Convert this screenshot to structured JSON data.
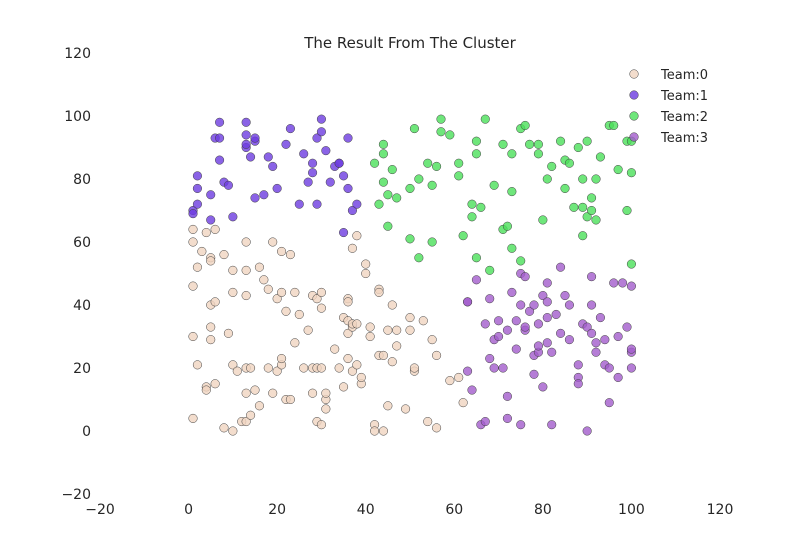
{
  "chart_data": {
    "type": "scatter",
    "title": "The Result From The Cluster",
    "xlabel": "",
    "ylabel": "",
    "xlim": [
      -20,
      120
    ],
    "ylim": [
      -20,
      120
    ],
    "x_ticks": [
      -20,
      0,
      20,
      40,
      60,
      80,
      100,
      120
    ],
    "y_ticks": [
      -20,
      0,
      20,
      40,
      60,
      80,
      100,
      120
    ],
    "x_tick_labels": [
      "−20",
      "0",
      "20",
      "40",
      "60",
      "80",
      "100",
      "120"
    ],
    "y_tick_labels": [
      "−20",
      "0",
      "20",
      "40",
      "60",
      "80",
      "100",
      "120"
    ],
    "grid": false,
    "legend_position": "top-right",
    "series": [
      {
        "name": "Team:0",
        "color": "#f0d5c0",
        "points": [
          [
            1,
            64
          ],
          [
            1,
            60
          ],
          [
            1,
            46
          ],
          [
            1,
            30
          ],
          [
            1,
            4
          ],
          [
            2,
            52
          ],
          [
            2,
            21
          ],
          [
            3,
            57
          ],
          [
            4,
            63
          ],
          [
            4,
            14
          ],
          [
            4,
            13
          ],
          [
            5,
            55
          ],
          [
            5,
            54
          ],
          [
            5,
            40
          ],
          [
            5,
            33
          ],
          [
            5,
            29
          ],
          [
            6,
            64
          ],
          [
            6,
            41
          ],
          [
            6,
            15
          ],
          [
            8,
            1
          ],
          [
            8,
            56
          ],
          [
            9,
            31
          ],
          [
            10,
            51
          ],
          [
            10,
            44
          ],
          [
            10,
            21
          ],
          [
            10,
            0
          ],
          [
            11,
            19
          ],
          [
            12,
            3
          ],
          [
            13,
            60
          ],
          [
            13,
            51
          ],
          [
            13,
            43
          ],
          [
            13,
            20
          ],
          [
            13,
            12
          ],
          [
            13,
            3
          ],
          [
            14,
            20
          ],
          [
            14,
            5
          ],
          [
            15,
            13
          ],
          [
            16,
            52
          ],
          [
            16,
            8
          ],
          [
            17,
            48
          ],
          [
            18,
            20
          ],
          [
            18,
            45
          ],
          [
            19,
            12
          ],
          [
            19,
            60
          ],
          [
            20,
            42
          ],
          [
            20,
            19
          ],
          [
            21,
            44
          ],
          [
            21,
            57
          ],
          [
            21,
            21
          ],
          [
            21,
            23
          ],
          [
            22,
            38
          ],
          [
            22,
            10
          ],
          [
            23,
            10
          ],
          [
            23,
            56
          ],
          [
            24,
            44
          ],
          [
            24,
            28
          ],
          [
            25,
            37
          ],
          [
            26,
            20
          ],
          [
            27,
            32
          ],
          [
            28,
            20
          ],
          [
            28,
            12
          ],
          [
            28,
            43
          ],
          [
            29,
            3
          ],
          [
            29,
            20
          ],
          [
            29,
            42
          ],
          [
            30,
            44
          ],
          [
            30,
            39
          ],
          [
            30,
            20
          ],
          [
            30,
            2
          ],
          [
            31,
            10
          ],
          [
            31,
            12
          ],
          [
            31,
            7
          ],
          [
            33,
            26
          ],
          [
            34,
            20
          ],
          [
            35,
            36
          ],
          [
            35,
            14
          ],
          [
            36,
            42
          ],
          [
            36,
            41
          ],
          [
            36,
            35
          ],
          [
            36,
            23
          ],
          [
            36,
            31
          ],
          [
            37,
            58
          ],
          [
            37,
            33
          ],
          [
            37,
            34
          ],
          [
            37,
            19
          ],
          [
            38,
            62
          ],
          [
            38,
            34
          ],
          [
            38,
            21
          ],
          [
            39,
            15
          ],
          [
            39,
            17
          ],
          [
            40,
            53
          ],
          [
            40,
            50
          ],
          [
            41,
            30
          ],
          [
            41,
            33
          ],
          [
            42,
            2
          ],
          [
            42,
            0
          ],
          [
            43,
            24
          ],
          [
            43,
            45
          ],
          [
            43,
            44
          ],
          [
            44,
            0
          ],
          [
            44,
            24
          ],
          [
            45,
            8
          ],
          [
            45,
            32
          ],
          [
            46,
            40
          ],
          [
            46,
            22
          ],
          [
            47,
            32
          ],
          [
            47,
            27
          ],
          [
            49,
            7
          ],
          [
            50,
            36
          ],
          [
            50,
            32
          ],
          [
            51,
            19
          ],
          [
            51,
            20
          ],
          [
            53,
            35
          ],
          [
            54,
            3
          ],
          [
            55,
            29
          ],
          [
            56,
            1
          ],
          [
            56,
            24
          ],
          [
            59,
            16
          ],
          [
            61,
            17
          ],
          [
            62,
            9
          ]
        ]
      },
      {
        "name": "Team:1",
        "color": "#6d3ce0",
        "points": [
          [
            1,
            70
          ],
          [
            1,
            69
          ],
          [
            2,
            81
          ],
          [
            2,
            77
          ],
          [
            2,
            72
          ],
          [
            5,
            75
          ],
          [
            5,
            67
          ],
          [
            6,
            93
          ],
          [
            7,
            98
          ],
          [
            7,
            86
          ],
          [
            7,
            93
          ],
          [
            8,
            79
          ],
          [
            9,
            78
          ],
          [
            10,
            68
          ],
          [
            13,
            98
          ],
          [
            13,
            94
          ],
          [
            13,
            90
          ],
          [
            13,
            91
          ],
          [
            14,
            87
          ],
          [
            15,
            74
          ],
          [
            15,
            92
          ],
          [
            15,
            93
          ],
          [
            17,
            75
          ],
          [
            18,
            87
          ],
          [
            19,
            84
          ],
          [
            20,
            77
          ],
          [
            22,
            91
          ],
          [
            23,
            96
          ],
          [
            25,
            72
          ],
          [
            26,
            88
          ],
          [
            27,
            79
          ],
          [
            28,
            82
          ],
          [
            28,
            85
          ],
          [
            29,
            72
          ],
          [
            29,
            93
          ],
          [
            30,
            99
          ],
          [
            30,
            95
          ],
          [
            31,
            89
          ],
          [
            32,
            79
          ],
          [
            33,
            84
          ],
          [
            34,
            85
          ],
          [
            34,
            85
          ],
          [
            35,
            63
          ],
          [
            35,
            81
          ],
          [
            36,
            77
          ],
          [
            36,
            93
          ],
          [
            37,
            70
          ],
          [
            38,
            72
          ]
        ]
      },
      {
        "name": "Team:2",
        "color": "#4be05a",
        "points": [
          [
            42,
            85
          ],
          [
            43,
            72
          ],
          [
            44,
            91
          ],
          [
            44,
            79
          ],
          [
            44,
            88
          ],
          [
            45,
            75
          ],
          [
            45,
            65
          ],
          [
            46,
            83
          ],
          [
            47,
            74
          ],
          [
            50,
            77
          ],
          [
            50,
            61
          ],
          [
            51,
            96
          ],
          [
            52,
            80
          ],
          [
            52,
            55
          ],
          [
            54,
            85
          ],
          [
            55,
            78
          ],
          [
            55,
            60
          ],
          [
            56,
            84
          ],
          [
            57,
            95
          ],
          [
            57,
            99
          ],
          [
            59,
            94
          ],
          [
            61,
            85
          ],
          [
            61,
            81
          ],
          [
            62,
            62
          ],
          [
            64,
            72
          ],
          [
            64,
            68
          ],
          [
            65,
            92
          ],
          [
            65,
            55
          ],
          [
            65,
            88
          ],
          [
            66,
            71
          ],
          [
            67,
            99
          ],
          [
            68,
            51
          ],
          [
            69,
            78
          ],
          [
            71,
            64
          ],
          [
            71,
            91
          ],
          [
            72,
            65
          ],
          [
            73,
            88
          ],
          [
            73,
            76
          ],
          [
            73,
            58
          ],
          [
            75,
            96
          ],
          [
            75,
            54
          ],
          [
            76,
            97
          ],
          [
            77,
            91
          ],
          [
            79,
            88
          ],
          [
            79,
            91
          ],
          [
            80,
            67
          ],
          [
            81,
            80
          ],
          [
            82,
            84
          ],
          [
            84,
            92
          ],
          [
            85,
            86
          ],
          [
            85,
            77
          ],
          [
            86,
            85
          ],
          [
            87,
            71
          ],
          [
            88,
            90
          ],
          [
            89,
            80
          ],
          [
            89,
            62
          ],
          [
            89,
            71
          ],
          [
            90,
            92
          ],
          [
            90,
            68
          ],
          [
            91,
            74
          ],
          [
            91,
            70
          ],
          [
            92,
            67
          ],
          [
            92,
            80
          ],
          [
            93,
            87
          ],
          [
            95,
            97
          ],
          [
            96,
            97
          ],
          [
            97,
            83
          ],
          [
            99,
            70
          ],
          [
            99,
            92
          ],
          [
            100,
            92
          ],
          [
            100,
            82
          ],
          [
            100,
            53
          ]
        ]
      },
      {
        "name": "Team:3",
        "color": "#a35ccc",
        "points": [
          [
            63,
            41
          ],
          [
            63,
            41
          ],
          [
            63,
            19
          ],
          [
            64,
            13
          ],
          [
            65,
            48
          ],
          [
            66,
            2
          ],
          [
            67,
            3
          ],
          [
            67,
            34
          ],
          [
            68,
            23
          ],
          [
            68,
            42
          ],
          [
            69,
            29
          ],
          [
            69,
            20
          ],
          [
            70,
            35
          ],
          [
            70,
            30
          ],
          [
            71,
            20
          ],
          [
            72,
            32
          ],
          [
            72,
            4
          ],
          [
            72,
            11
          ],
          [
            73,
            44
          ],
          [
            74,
            26
          ],
          [
            74,
            35
          ],
          [
            75,
            2
          ],
          [
            75,
            40
          ],
          [
            75,
            50
          ],
          [
            76,
            49
          ],
          [
            76,
            32
          ],
          [
            76,
            33
          ],
          [
            77,
            38
          ],
          [
            78,
            40
          ],
          [
            78,
            24
          ],
          [
            78,
            18
          ],
          [
            79,
            25
          ],
          [
            79,
            34
          ],
          [
            79,
            27
          ],
          [
            80,
            43
          ],
          [
            80,
            14
          ],
          [
            81,
            36
          ],
          [
            81,
            41
          ],
          [
            81,
            47
          ],
          [
            81,
            28
          ],
          [
            82,
            25
          ],
          [
            82,
            2
          ],
          [
            83,
            37
          ],
          [
            84,
            52
          ],
          [
            84,
            31
          ],
          [
            85,
            43
          ],
          [
            86,
            40
          ],
          [
            86,
            29
          ],
          [
            88,
            21
          ],
          [
            88,
            17
          ],
          [
            88,
            15
          ],
          [
            89,
            34
          ],
          [
            90,
            33
          ],
          [
            90,
            0
          ],
          [
            91,
            31
          ],
          [
            91,
            49
          ],
          [
            91,
            40
          ],
          [
            92,
            25
          ],
          [
            92,
            28
          ],
          [
            93,
            36
          ],
          [
            94,
            21
          ],
          [
            94,
            29
          ],
          [
            95,
            20
          ],
          [
            95,
            9
          ],
          [
            96,
            47
          ],
          [
            97,
            30
          ],
          [
            97,
            17
          ],
          [
            98,
            47
          ],
          [
            99,
            33
          ],
          [
            100,
            20
          ],
          [
            100,
            25
          ],
          [
            100,
            26
          ],
          [
            100,
            46
          ]
        ]
      }
    ]
  }
}
